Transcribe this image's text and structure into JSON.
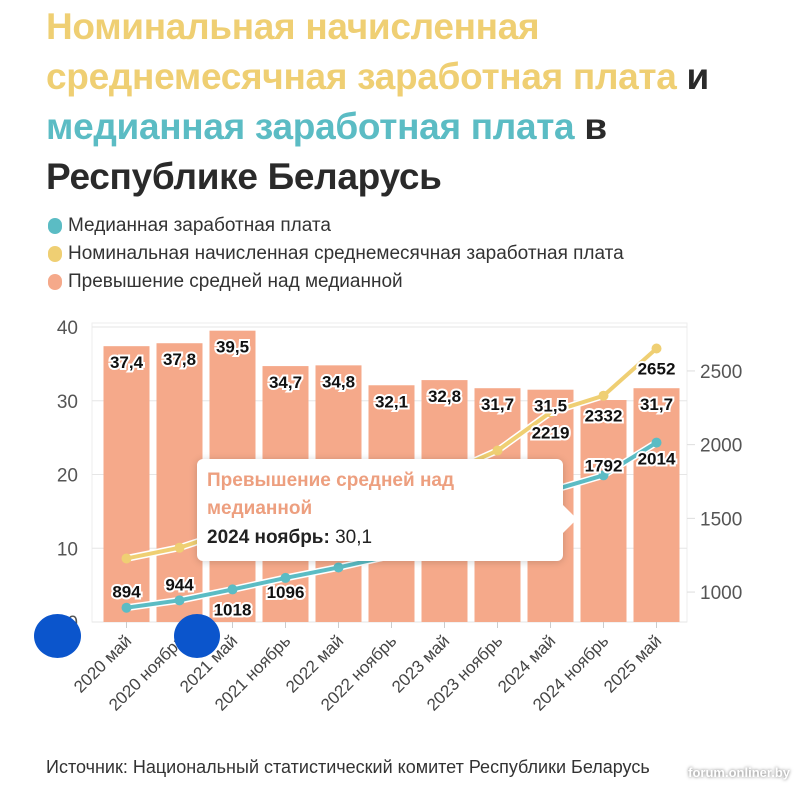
{
  "title": {
    "part1": "Номинальная начисленная среднемесячная заработная плата",
    "part2": " и ",
    "part3": "медианная заработная плата",
    "part4": " в Республике Беларусь"
  },
  "legend": [
    {
      "label": "Медианная заработная плата",
      "color": "#5bbcc4"
    },
    {
      "label": "Номинальная начисленная среднемесячная заработная плата",
      "color": "#efcf73"
    },
    {
      "label": "Превышение средней над медианной",
      "color": "#f5a98a"
    }
  ],
  "tooltip": {
    "title": "Превышение средней над медианной",
    "category": "2024 ноябрь:",
    "value": "30,1"
  },
  "source": "Источник: Национальный статистический комитет Республики Беларусь",
  "watermark": "forum.onliner.by",
  "chart_data": {
    "type": "bar+line",
    "categories": [
      "2020 май",
      "2020 ноябрь",
      "2021 май",
      "2021 ноябрь",
      "2022 май",
      "2022 ноябрь",
      "2023 май",
      "2023 ноябрь",
      "2024 май",
      "2024 ноябрь",
      "2025 май"
    ],
    "left_axis": {
      "ylim": [
        0,
        40
      ],
      "ticks": [
        0,
        10,
        20,
        30,
        40
      ]
    },
    "right_axis": {
      "ylim": [
        797,
        2798
      ],
      "ticks": [
        1000,
        1500,
        2000,
        2500
      ]
    },
    "grid": true,
    "series": [
      {
        "name": "Превышение средней над медианной",
        "type": "bar",
        "axis": "left",
        "color": "#f5a98a",
        "values": [
          37.4,
          37.8,
          39.5,
          34.7,
          34.8,
          32.1,
          32.8,
          31.7,
          31.5,
          30.1,
          31.7
        ],
        "labels": [
          "37,4",
          "37,8",
          "39,5",
          "34,7",
          "34,8",
          "32,1",
          "32,8",
          "31,7",
          "31,5",
          null,
          "31,7"
        ]
      },
      {
        "name": "Медианная заработная плата",
        "type": "line",
        "axis": "right",
        "color": "#5bbcc4",
        "values": [
          894,
          944,
          1018,
          1096,
          1167,
          1248,
          1355,
          1490,
          1687,
          1792,
          2014
        ],
        "labels": [
          "894",
          "944",
          "1018",
          "1096",
          "1167",
          "1248",
          null,
          null,
          null,
          "1792",
          "2014"
        ]
      },
      {
        "name": "Номинальная начисленная среднемесячная заработная плата",
        "type": "line",
        "axis": "right",
        "color": "#efcf73",
        "values": [
          1228,
          1301,
          1420,
          1476,
          1573,
          1649,
          1800,
          1960,
          2219,
          2332,
          2652
        ],
        "labels": [
          null,
          null,
          null,
          null,
          null,
          null,
          null,
          null,
          "2219",
          "2332",
          "2652"
        ]
      }
    ]
  }
}
